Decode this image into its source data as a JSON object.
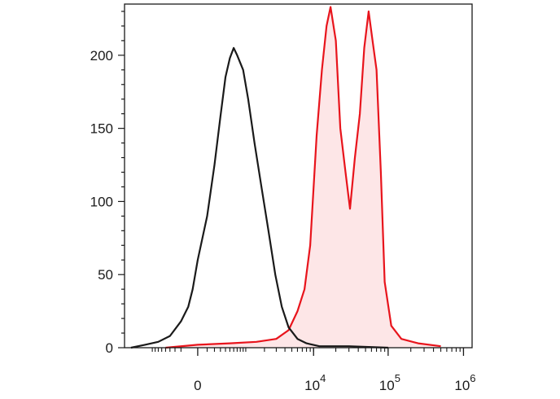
{
  "chart_data": {
    "type": "line",
    "title": "",
    "xlabel": "",
    "ylabel": "",
    "x_scale": "biexponential",
    "ylim": [
      0,
      235
    ],
    "y_ticks": [
      {
        "value": 0,
        "label": "0"
      },
      {
        "value": 50,
        "label": "50"
      },
      {
        "value": 100,
        "label": "100"
      },
      {
        "value": 150,
        "label": "150"
      },
      {
        "value": 200,
        "label": "200"
      }
    ],
    "x_ticks": [
      {
        "value": "0",
        "base": "0",
        "exp": ""
      },
      {
        "value": "10^4",
        "base": "10",
        "exp": "4"
      },
      {
        "value": "10^5",
        "base": "10",
        "exp": "5"
      },
      {
        "value": "10^6",
        "base": "10",
        "exp": "6"
      }
    ],
    "series": [
      {
        "color": "#1a1a1a",
        "filled": false,
        "points": [
          [
            "-2000",
            0
          ],
          [
            "-1200",
            2
          ],
          [
            "-700",
            4
          ],
          [
            "-400",
            8
          ],
          [
            "-200",
            18
          ],
          [
            "-100",
            28
          ],
          [
            "-50",
            40
          ],
          [
            "0",
            60
          ],
          [
            "100",
            90
          ],
          [
            "200",
            125
          ],
          [
            "300",
            158
          ],
          [
            "400",
            185
          ],
          [
            "500",
            198
          ],
          [
            "600",
            205
          ],
          [
            "700",
            200
          ],
          [
            "900",
            190
          ],
          [
            "1100",
            170
          ],
          [
            "1400",
            140
          ],
          [
            "1800",
            110
          ],
          [
            "2300",
            80
          ],
          [
            "2900",
            50
          ],
          [
            "3600",
            28
          ],
          [
            "4500",
            14
          ],
          [
            "6000",
            6
          ],
          [
            "8000",
            3
          ],
          [
            "12000",
            1
          ],
          [
            "30000",
            1
          ],
          [
            "100000",
            0
          ]
        ]
      },
      {
        "color": "#e8141c",
        "fill": "#fde6e7",
        "filled": true,
        "points": [
          [
            "-500",
            0
          ],
          [
            "0",
            2
          ],
          [
            "500",
            3
          ],
          [
            "1500",
            4
          ],
          [
            "3000",
            6
          ],
          [
            "4500",
            12
          ],
          [
            "6000",
            25
          ],
          [
            "7500",
            40
          ],
          [
            "9000",
            70
          ],
          [
            "11000",
            145
          ],
          [
            "13000",
            190
          ],
          [
            "15000",
            220
          ],
          [
            "17000",
            233
          ],
          [
            "20000",
            210
          ],
          [
            "23000",
            150
          ],
          [
            "27000",
            120
          ],
          [
            "31000",
            95
          ],
          [
            "36000",
            130
          ],
          [
            "42000",
            160
          ],
          [
            "48000",
            205
          ],
          [
            "55000",
            230
          ],
          [
            "62000",
            210
          ],
          [
            "70000",
            190
          ],
          [
            "80000",
            120
          ],
          [
            "90000",
            45
          ],
          [
            "110000",
            15
          ],
          [
            "150000",
            6
          ],
          [
            "250000",
            3
          ],
          [
            "500000",
            1
          ]
        ]
      }
    ]
  }
}
